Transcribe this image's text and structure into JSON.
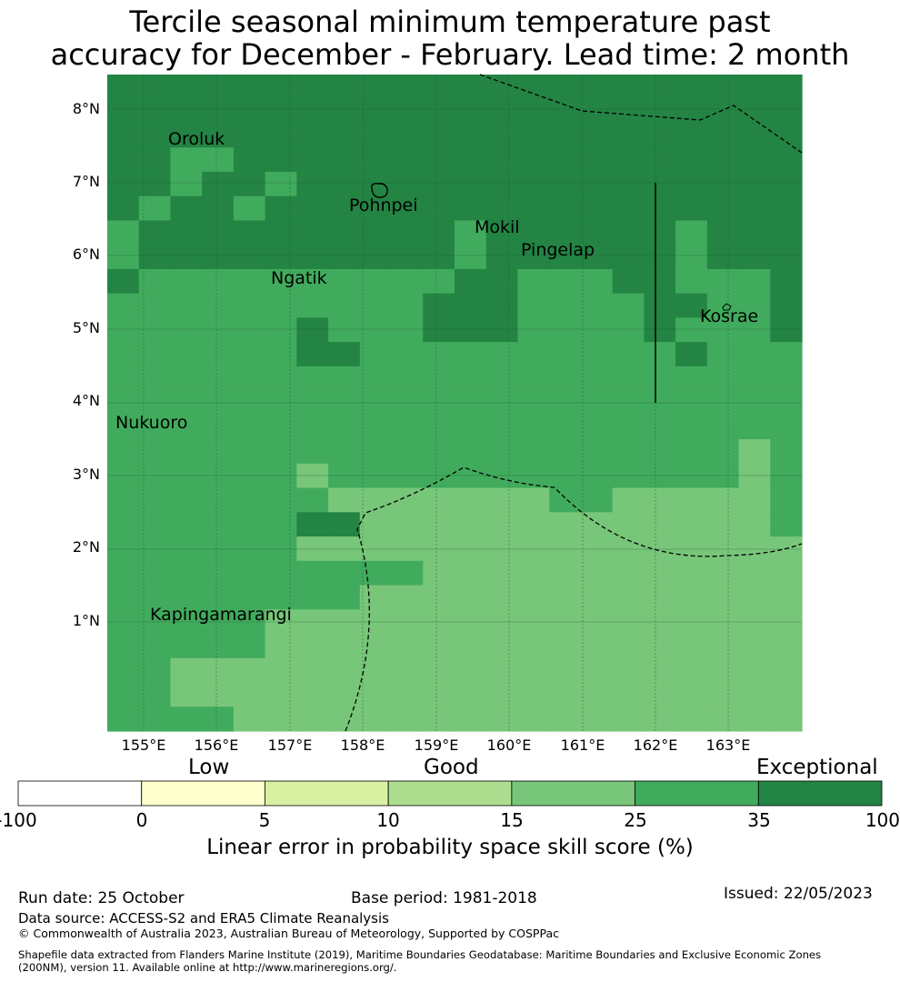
{
  "title_line1": "Tercile seasonal minimum temperature past",
  "title_line2": "accuracy for December - February. Lead time: 2 month",
  "map": {
    "lon_ticks": [
      "155°E",
      "156°E",
      "157°E",
      "158°E",
      "159°E",
      "160°E",
      "161°E",
      "162°E",
      "163°E"
    ],
    "lat_ticks": [
      "8°N",
      "7°N",
      "6°N",
      "5°N",
      "4°N",
      "3°N",
      "2°N",
      "1°N"
    ],
    "places": {
      "oroluk": "Oroluk",
      "pohnpei": "Pohnpei",
      "mokil": "Mokil",
      "pingelap": "Pingelap",
      "ngatik": "Ngatik",
      "kosrae": "Kosrae",
      "nukuoro": "Nukuoro",
      "kapingamarangi": "Kapingamarangi"
    },
    "category_colors": {
      "1": "#78c679",
      "2": "#41ab5d",
      "3": "#238443"
    },
    "grid_cols": [
      "154.5",
      "155.5",
      "156.5",
      "157.5",
      "158.5",
      "159.5",
      "160.5",
      "161.5",
      "162.5",
      "163.5"
    ],
    "grid_rows_north_to_south": [
      "3333333333333333333333",
      "3333333333333333333333",
      "3333333333333333333333",
      "3322333333333333333333",
      "3323323333333333333333",
      "3233233333333333333333",
      "2333333333323333332333",
      "2333333333323333332333",
      "3222222222233222332223",
      "2222222222333222233223",
      "2222223222333222232223",
      "2222223322222222223222",
      "2222222222222222222222",
      "2222222222222222222222",
      "2222222222222222222222",
      "2222222222222222222212",
      "2222221222222222222212",
      "2222222111111122111112",
      "2222223311111111111112",
      "2222221111111111111111",
      "2222222222111111111111",
      "2222222211111111111111",
      "2222211111111111111111",
      "2222211111111111111111",
      "2211111111111111111111",
      "2211111111111111111111",
      "2222111111111111111111"
    ]
  },
  "colorbar": {
    "band_low": "Low",
    "band_good": "Good",
    "band_exceptional": "Exceptional",
    "ticks": [
      "-100",
      "0",
      "5",
      "10",
      "15",
      "25",
      "35",
      "100"
    ],
    "colors": [
      "#ffffff",
      "#ffffcc",
      "#d9f0a3",
      "#addd8e",
      "#78c679",
      "#41ab5d",
      "#238443"
    ],
    "label": "Linear error in probability space skill score (%)"
  },
  "footer": {
    "run_date": "Run date: 25 October",
    "base_period": "Base period: 1981-2018",
    "issued": "Issued: 22/05/2023",
    "data_source": "Data source: ACCESS-S2 and ERA5 Climate Reanalysis",
    "copyright": "© Commonwealth of Australia 2023, Australian Bureau of Meteorology, Supported by COSPPac",
    "shapefile_line1": "Shapefile data extracted from Flanders Marine Institute (2019), Maritime Boundaries Geodatabase: Maritime Boundaries and Exclusive Economic Zones",
    "shapefile_line2": "(200NM), version 11. Available online at http://www.marineregions.org/."
  }
}
